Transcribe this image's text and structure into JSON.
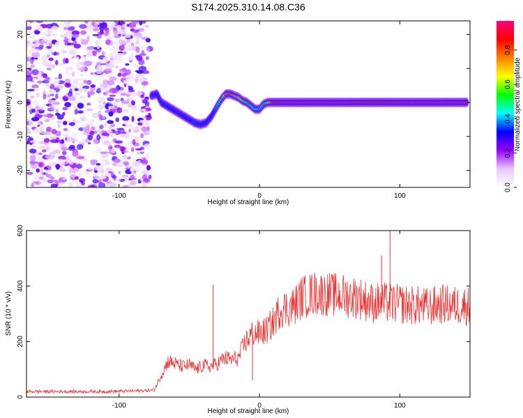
{
  "figure": {
    "title": "S174.2025.310.14.08.C36"
  },
  "chart_data": [
    {
      "id": "spectrogram",
      "type": "heatmap",
      "xlabel": "Height of straight line (km)",
      "ylabel": "Frequency (Hz)",
      "xlim": [
        -166,
        150
      ],
      "ylim": [
        -25,
        24
      ],
      "x_ticks": [
        -100,
        0,
        100
      ],
      "y_ticks": [
        -20,
        -10,
        0,
        10,
        20
      ],
      "colorbar": {
        "label": "Normalized spectral amplitude",
        "range": [
          0,
          0.97
        ],
        "ticks": [
          0.0,
          0.2,
          0.4,
          0.6,
          0.8
        ],
        "tick_labels": [
          "0.0",
          "0.2",
          "0.4",
          "0.6",
          "0.8"
        ],
        "colors": [
          "#ffffff",
          "#e6c8ff",
          "#9900ff",
          "#0000ff",
          "#00ffff",
          "#00ff00",
          "#ffff00",
          "#ff8000",
          "#ff0000",
          "#ff0080"
        ]
      },
      "noise_region": {
        "x_range": [
          -166,
          -78
        ],
        "amplitude_range": [
          0.05,
          0.3
        ]
      },
      "signal_trace": {
        "x": [
          -77,
          -73,
          -70,
          -66,
          -62,
          -58,
          -54,
          -50,
          -46,
          -42,
          -38,
          -34,
          -30,
          -27,
          -24,
          -21,
          -18,
          -15,
          -12,
          -9,
          -6,
          -3,
          0,
          3,
          6,
          10,
          20,
          40,
          60,
          85,
          100,
          120,
          135,
          148
        ],
        "frequency": [
          2,
          2.5,
          0,
          -1,
          -2,
          -3,
          -4,
          -5,
          -6,
          -6.5,
          -6,
          -4,
          -1,
          1,
          2.5,
          2.5,
          2,
          1.5,
          0.5,
          0,
          -1,
          -2,
          -2,
          -0.5,
          0,
          0,
          0,
          0,
          0,
          0,
          0,
          0,
          0,
          0
        ],
        "amplitude": [
          0.25,
          0.3,
          0.28,
          0.3,
          0.3,
          0.28,
          0.28,
          0.3,
          0.35,
          0.3,
          0.3,
          0.3,
          0.4,
          0.5,
          0.75,
          0.8,
          0.75,
          0.7,
          0.6,
          0.55,
          0.5,
          0.45,
          0.4,
          0.5,
          0.6,
          0.9,
          0.95,
          0.95,
          0.95,
          0.9,
          0.95,
          0.95,
          0.95,
          0.95
        ]
      }
    },
    {
      "id": "snr",
      "type": "line",
      "xlabel": "Height of straight line (km)",
      "ylabel": "SNR (10 * v/v)",
      "xlim": [
        -166,
        150
      ],
      "ylim": [
        0,
        600
      ],
      "x_ticks": [
        -100,
        0,
        100
      ],
      "y_ticks": [
        0,
        200,
        400,
        600
      ],
      "color": "#ee3333",
      "series": [
        {
          "name": "SNR",
          "x": [
            -166,
            -150,
            -130,
            -110,
            -90,
            -75,
            -70,
            -65,
            -60,
            -55,
            -50,
            -45,
            -40,
            -35,
            -30,
            -25,
            -20,
            -15,
            -10,
            -5,
            0,
            5,
            10,
            15,
            20,
            25,
            30,
            40,
            50,
            60,
            70,
            80,
            90,
            100,
            110,
            120,
            130,
            140,
            150
          ],
          "y": [
            20,
            20,
            20,
            20,
            22,
            25,
            80,
            130,
            120,
            110,
            115,
            100,
            115,
            110,
            120,
            140,
            135,
            140,
            200,
            230,
            230,
            240,
            270,
            320,
            320,
            330,
            360,
            375,
            370,
            365,
            360,
            340,
            340,
            335,
            330,
            325,
            335,
            330,
            330
          ]
        }
      ],
      "spikes": [
        {
          "x": -33,
          "y": 405
        },
        {
          "x": 93,
          "y": 600
        },
        {
          "x": 87,
          "y": 510
        },
        {
          "x": -5,
          "y": 60
        }
      ]
    }
  ]
}
